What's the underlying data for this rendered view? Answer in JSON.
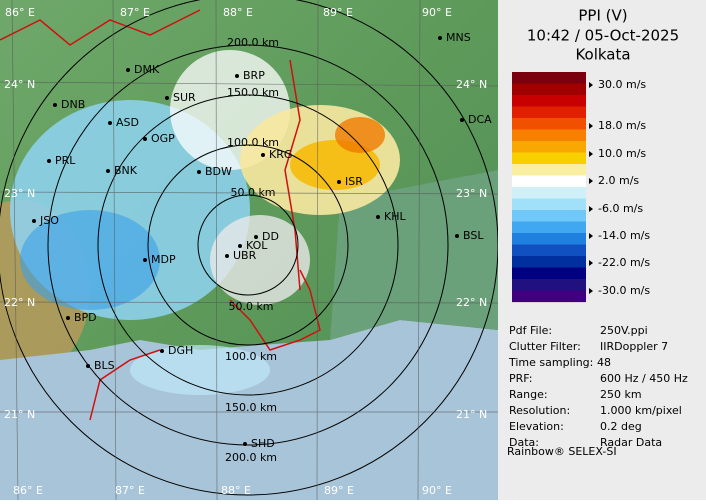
{
  "map": {
    "top_longitudes": [
      "86° E",
      "87° E",
      "88° E",
      "89° E",
      "90° E"
    ],
    "bottom_longitudes": [
      "86° E",
      "87° E",
      "88° E",
      "89° E",
      "90° E"
    ],
    "left_latitudes": [
      "24° N",
      "23° N",
      "22° N",
      "21° N"
    ],
    "right_latitudes": [
      "24° N",
      "23° N",
      "22° N",
      "21° N"
    ],
    "range_labels_top": [
      "200.0 km",
      "150.0 km",
      "100.0 km",
      "50.0 km"
    ],
    "range_labels_bottom": [
      "50.0 km",
      "100.0 km",
      "150.0 km",
      "200.0 km"
    ],
    "stations": [
      "MNS",
      "DMK",
      "BRP",
      "DNB",
      "SUR",
      "ASD",
      "OGP",
      "DCA",
      "KRG",
      "PRL",
      "BNK",
      "BDW",
      "ISR",
      "JSO",
      "KHL",
      "DD",
      "KOL",
      "BSL",
      "MDP",
      "UBR",
      "BPD",
      "BLS",
      "DGH",
      "SHD"
    ]
  },
  "panel": {
    "title": "PPI (V)",
    "time": "10:42 / 05-Oct-2025",
    "site": "Kolkata",
    "legend_labels": [
      "30.0 m/s",
      "18.0 m/s",
      "10.0 m/s",
      "2.0 m/s",
      "-6.0 m/s",
      "-14.0 m/s",
      "-22.0 m/s",
      "-30.0 m/s"
    ],
    "info": [
      [
        "Pdf File:",
        "250V.ppi"
      ],
      [
        "Clutter Filter:",
        "IIRDoppler 7"
      ],
      [
        "Time sampling:",
        "48"
      ],
      [
        "PRF:",
        "600 Hz / 450 Hz"
      ],
      [
        "Range:",
        "250 km"
      ],
      [
        "Resolution:",
        "1.000 km/pixel"
      ],
      [
        "Elevation:",
        "0.2 deg"
      ],
      [
        "Data:",
        "Radar Data"
      ]
    ],
    "footer": "Rainbow® SELEX-SI"
  }
}
